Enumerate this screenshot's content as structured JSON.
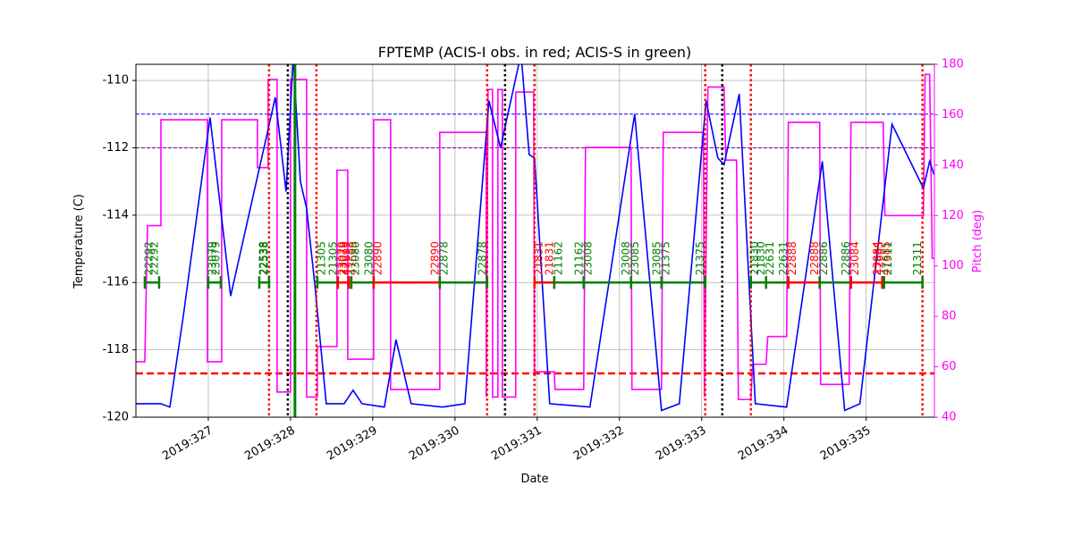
{
  "chart_data": {
    "type": "line",
    "title": "FPTEMP (ACIS-I obs. in red; ACIS-S in green)",
    "x_label": "Date",
    "y_label": "Temperature (C)",
    "y2_label": "Pitch (deg)",
    "xlim": [
      326.12,
      335.83
    ],
    "ylim": [
      -120,
      -109.52
    ],
    "y2lim": [
      40,
      180
    ],
    "grid": true,
    "xticks": [
      {
        "value": 327,
        "label": "2019:327"
      },
      {
        "value": 328,
        "label": "2019:328"
      },
      {
        "value": 329,
        "label": "2019:329"
      },
      {
        "value": 330,
        "label": "2019:330"
      },
      {
        "value": 331,
        "label": "2019:331"
      },
      {
        "value": 332,
        "label": "2019:332"
      },
      {
        "value": 333,
        "label": "2019:333"
      },
      {
        "value": 334,
        "label": "2019:334"
      },
      {
        "value": 335,
        "label": "2019:335"
      }
    ],
    "yticks": [
      -120,
      -118,
      -116,
      -114,
      -112,
      -110
    ],
    "y2ticks": [
      40,
      60,
      80,
      100,
      120,
      140,
      160,
      180
    ],
    "y2_color": "#ff00ff",
    "series": [
      {
        "color": "#0000ff",
        "x": [
          326.12,
          326.424,
          326.533,
          326.696,
          327.022,
          327.272,
          327.815,
          327.946,
          328.033,
          328.12,
          328.196,
          328.293,
          328.435,
          328.652,
          328.761,
          328.87,
          329.141,
          329.283,
          329.467,
          329.848,
          330.12,
          330.413,
          330.554,
          330.804,
          330.902,
          330.967,
          331.152,
          331.641,
          332.185,
          332.511,
          332.728,
          333.054,
          333.196,
          333.272,
          333.457,
          333.652,
          334.033,
          334.467,
          334.739,
          334.924,
          335.315,
          335.696,
          335.772,
          335.826
        ],
        "values": [
          -119.6,
          -119.6,
          -119.7,
          -117.0,
          -111.1,
          -116.4,
          -110.5,
          -113.3,
          -109.3,
          -113.0,
          -113.8,
          -116.0,
          -119.6,
          -119.6,
          -119.2,
          -119.6,
          -119.7,
          -117.7,
          -119.6,
          -119.7,
          -119.6,
          -110.6,
          -112.0,
          -109.2,
          -112.2,
          -112.3,
          -119.6,
          -119.7,
          -111.0,
          -119.8,
          -119.6,
          -110.6,
          -112.3,
          -112.5,
          -110.4,
          -119.6,
          -119.7,
          -112.4,
          -119.8,
          -119.6,
          -111.3,
          -113.2,
          -112.4,
          -112.8
        ]
      },
      {
        "color": "#ff00ff",
        "axis": "y2",
        "x": [
          326.12,
          326.228,
          326.261,
          326.424,
          326.424,
          326.989,
          326.989,
          327.163,
          327.163,
          327.598,
          327.598,
          327.728,
          327.728,
          327.837,
          327.837,
          328.0,
          328.0,
          328.196,
          328.196,
          328.326,
          328.326,
          328.565,
          328.565,
          328.696,
          328.696,
          329.011,
          329.011,
          329.217,
          329.217,
          329.815,
          329.815,
          330.38,
          330.38,
          330.402,
          330.457,
          330.457,
          330.522,
          330.522,
          330.576,
          330.576,
          330.739,
          330.739,
          330.957,
          330.967,
          331.207,
          331.217,
          331.565,
          331.587,
          332.141,
          332.152,
          332.511,
          332.533,
          333.022,
          333.033,
          333.076,
          333.272,
          333.293,
          333.424,
          333.446,
          333.598,
          333.62,
          333.783,
          333.804,
          334.033,
          334.054,
          334.435,
          334.446,
          334.793,
          334.815,
          335.207,
          335.228,
          335.696,
          335.717,
          335.772,
          335.804,
          335.826
        ],
        "values": [
          62,
          62,
          116,
          116,
          158,
          158,
          62,
          62,
          158,
          158,
          139,
          139,
          174,
          174,
          50,
          50,
          174,
          174,
          48,
          48,
          68,
          68,
          138,
          138,
          63,
          63,
          158,
          158,
          51,
          51,
          153,
          153,
          48,
          170,
          170,
          48,
          48,
          170,
          170,
          48,
          48,
          169,
          169,
          58,
          58,
          51,
          51,
          147,
          147,
          51,
          51,
          153,
          153,
          48,
          171,
          171,
          142,
          142,
          47,
          47,
          61,
          61,
          72,
          72,
          157,
          157,
          53,
          53,
          157,
          157,
          120,
          120,
          176,
          176,
          103,
          103
        ]
      }
    ],
    "reference_lines": [
      {
        "value": -111,
        "color": "#0000ff"
      },
      {
        "value": -112,
        "color": "#800080"
      },
      {
        "value": -118.7,
        "color": "#ff0000"
      }
    ],
    "vertical_lines": [
      {
        "x": 327.739,
        "color": "#ff0000",
        "style": "dotted"
      },
      {
        "x": 328.315,
        "color": "#ff0000",
        "style": "dotted"
      },
      {
        "x": 330.391,
        "color": "#ff0000",
        "style": "dotted"
      },
      {
        "x": 330.967,
        "color": "#ff0000",
        "style": "dotted"
      },
      {
        "x": 333.043,
        "color": "#ff0000",
        "style": "dotted"
      },
      {
        "x": 333.598,
        "color": "#ff0000",
        "style": "dotted"
      },
      {
        "x": 335.685,
        "color": "#ff0000",
        "style": "dotted"
      },
      {
        "x": 327.967,
        "color": "#000000",
        "style": "dotted"
      },
      {
        "x": 330.609,
        "color": "#000000",
        "style": "dotted"
      },
      {
        "x": 333.25,
        "color": "#000000",
        "style": "dotted"
      },
      {
        "x": 328.054,
        "color": "#008000",
        "style": "solid"
      }
    ],
    "obs_level": -116,
    "observations": [
      {
        "obsid": "22292",
        "color": "#008000",
        "start": 326.228,
        "stop": 326.402
      },
      {
        "obsid": "23079",
        "color": "#008000",
        "start": 327.0,
        "stop": 327.152
      },
      {
        "obsid": "22538",
        "color": "#008000",
        "start": 327.62,
        "stop": 327.739
      },
      {
        "obsid": "21305",
        "color": "#008000",
        "start": 328.326,
        "stop": 328.576
      },
      {
        "obsid": "23079",
        "color": "#ff0000",
        "start": 328.576,
        "stop": 328.707
      },
      {
        "obsid": "47699",
        "color": "#ff0000",
        "start": 328.707,
        "stop": 328.739
      },
      {
        "obsid": "23080",
        "color": "#008000",
        "start": 328.739,
        "stop": 329.011
      },
      {
        "obsid": "22890",
        "color": "#ff0000",
        "start": 329.011,
        "stop": 329.815
      },
      {
        "obsid": "22878",
        "color": "#008000",
        "start": 329.815,
        "stop": 330.391
      },
      {
        "obsid": "21831",
        "color": "#ff0000",
        "start": 330.967,
        "stop": 331.207
      },
      {
        "obsid": "21162",
        "color": "#008000",
        "start": 331.207,
        "stop": 331.565
      },
      {
        "obsid": "23008",
        "color": "#008000",
        "start": 331.565,
        "stop": 332.141
      },
      {
        "obsid": "23085",
        "color": "#008000",
        "start": 332.141,
        "stop": 332.511
      },
      {
        "obsid": "21375",
        "color": "#008000",
        "start": 332.511,
        "stop": 333.043
      },
      {
        "obsid": "21830",
        "color": "#008000",
        "start": 333.598,
        "stop": 333.783
      },
      {
        "obsid": "22631",
        "color": "#008000",
        "start": 333.783,
        "stop": 334.054
      },
      {
        "obsid": "22888",
        "color": "#ff0000",
        "start": 334.054,
        "stop": 334.435
      },
      {
        "obsid": "22886",
        "color": "#008000",
        "start": 334.435,
        "stop": 334.815
      },
      {
        "obsid": "23084",
        "color": "#ff0000",
        "start": 334.815,
        "stop": 335.196
      },
      {
        "obsid": "47685",
        "color": "#ff0000",
        "start": 335.196,
        "stop": 335.217
      },
      {
        "obsid": "21311",
        "color": "#008000",
        "start": 335.217,
        "stop": 335.685
      }
    ]
  }
}
